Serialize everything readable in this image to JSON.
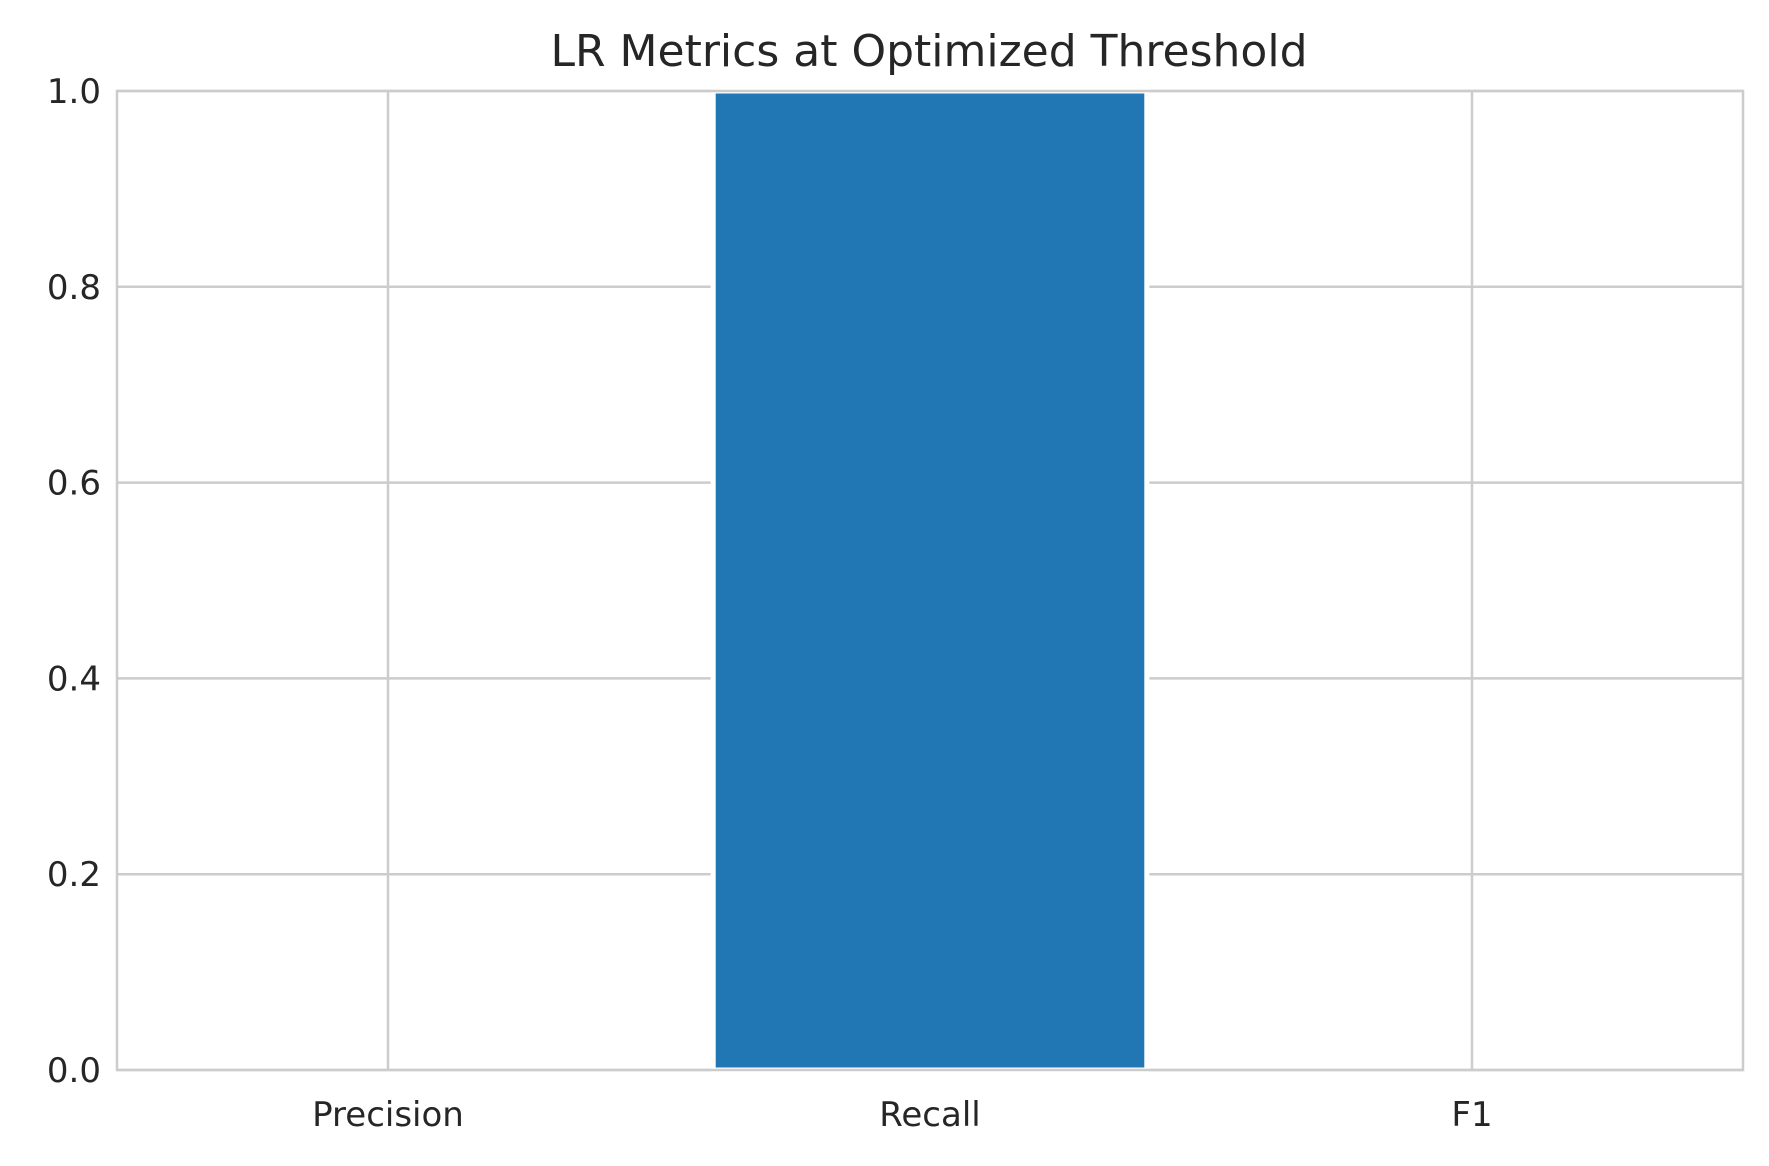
{
  "chart_data": {
    "type": "bar",
    "title": "LR Metrics at Optimized Threshold",
    "xlabel": "",
    "ylabel": "",
    "categories": [
      "Precision",
      "Recall",
      "F1"
    ],
    "values": [
      0.0,
      1.0,
      0.0
    ],
    "ylim": [
      0,
      1
    ],
    "yticks": [
      0.0,
      0.2,
      0.4,
      0.6,
      0.8,
      1.0
    ],
    "ytick_labels": [
      "0.0",
      "0.2",
      "0.4",
      "0.6",
      "0.8",
      "1.0"
    ],
    "grid": true,
    "bar_color": "#2177b4",
    "grid_color": "#cccccc",
    "text_color": "#262626"
  }
}
